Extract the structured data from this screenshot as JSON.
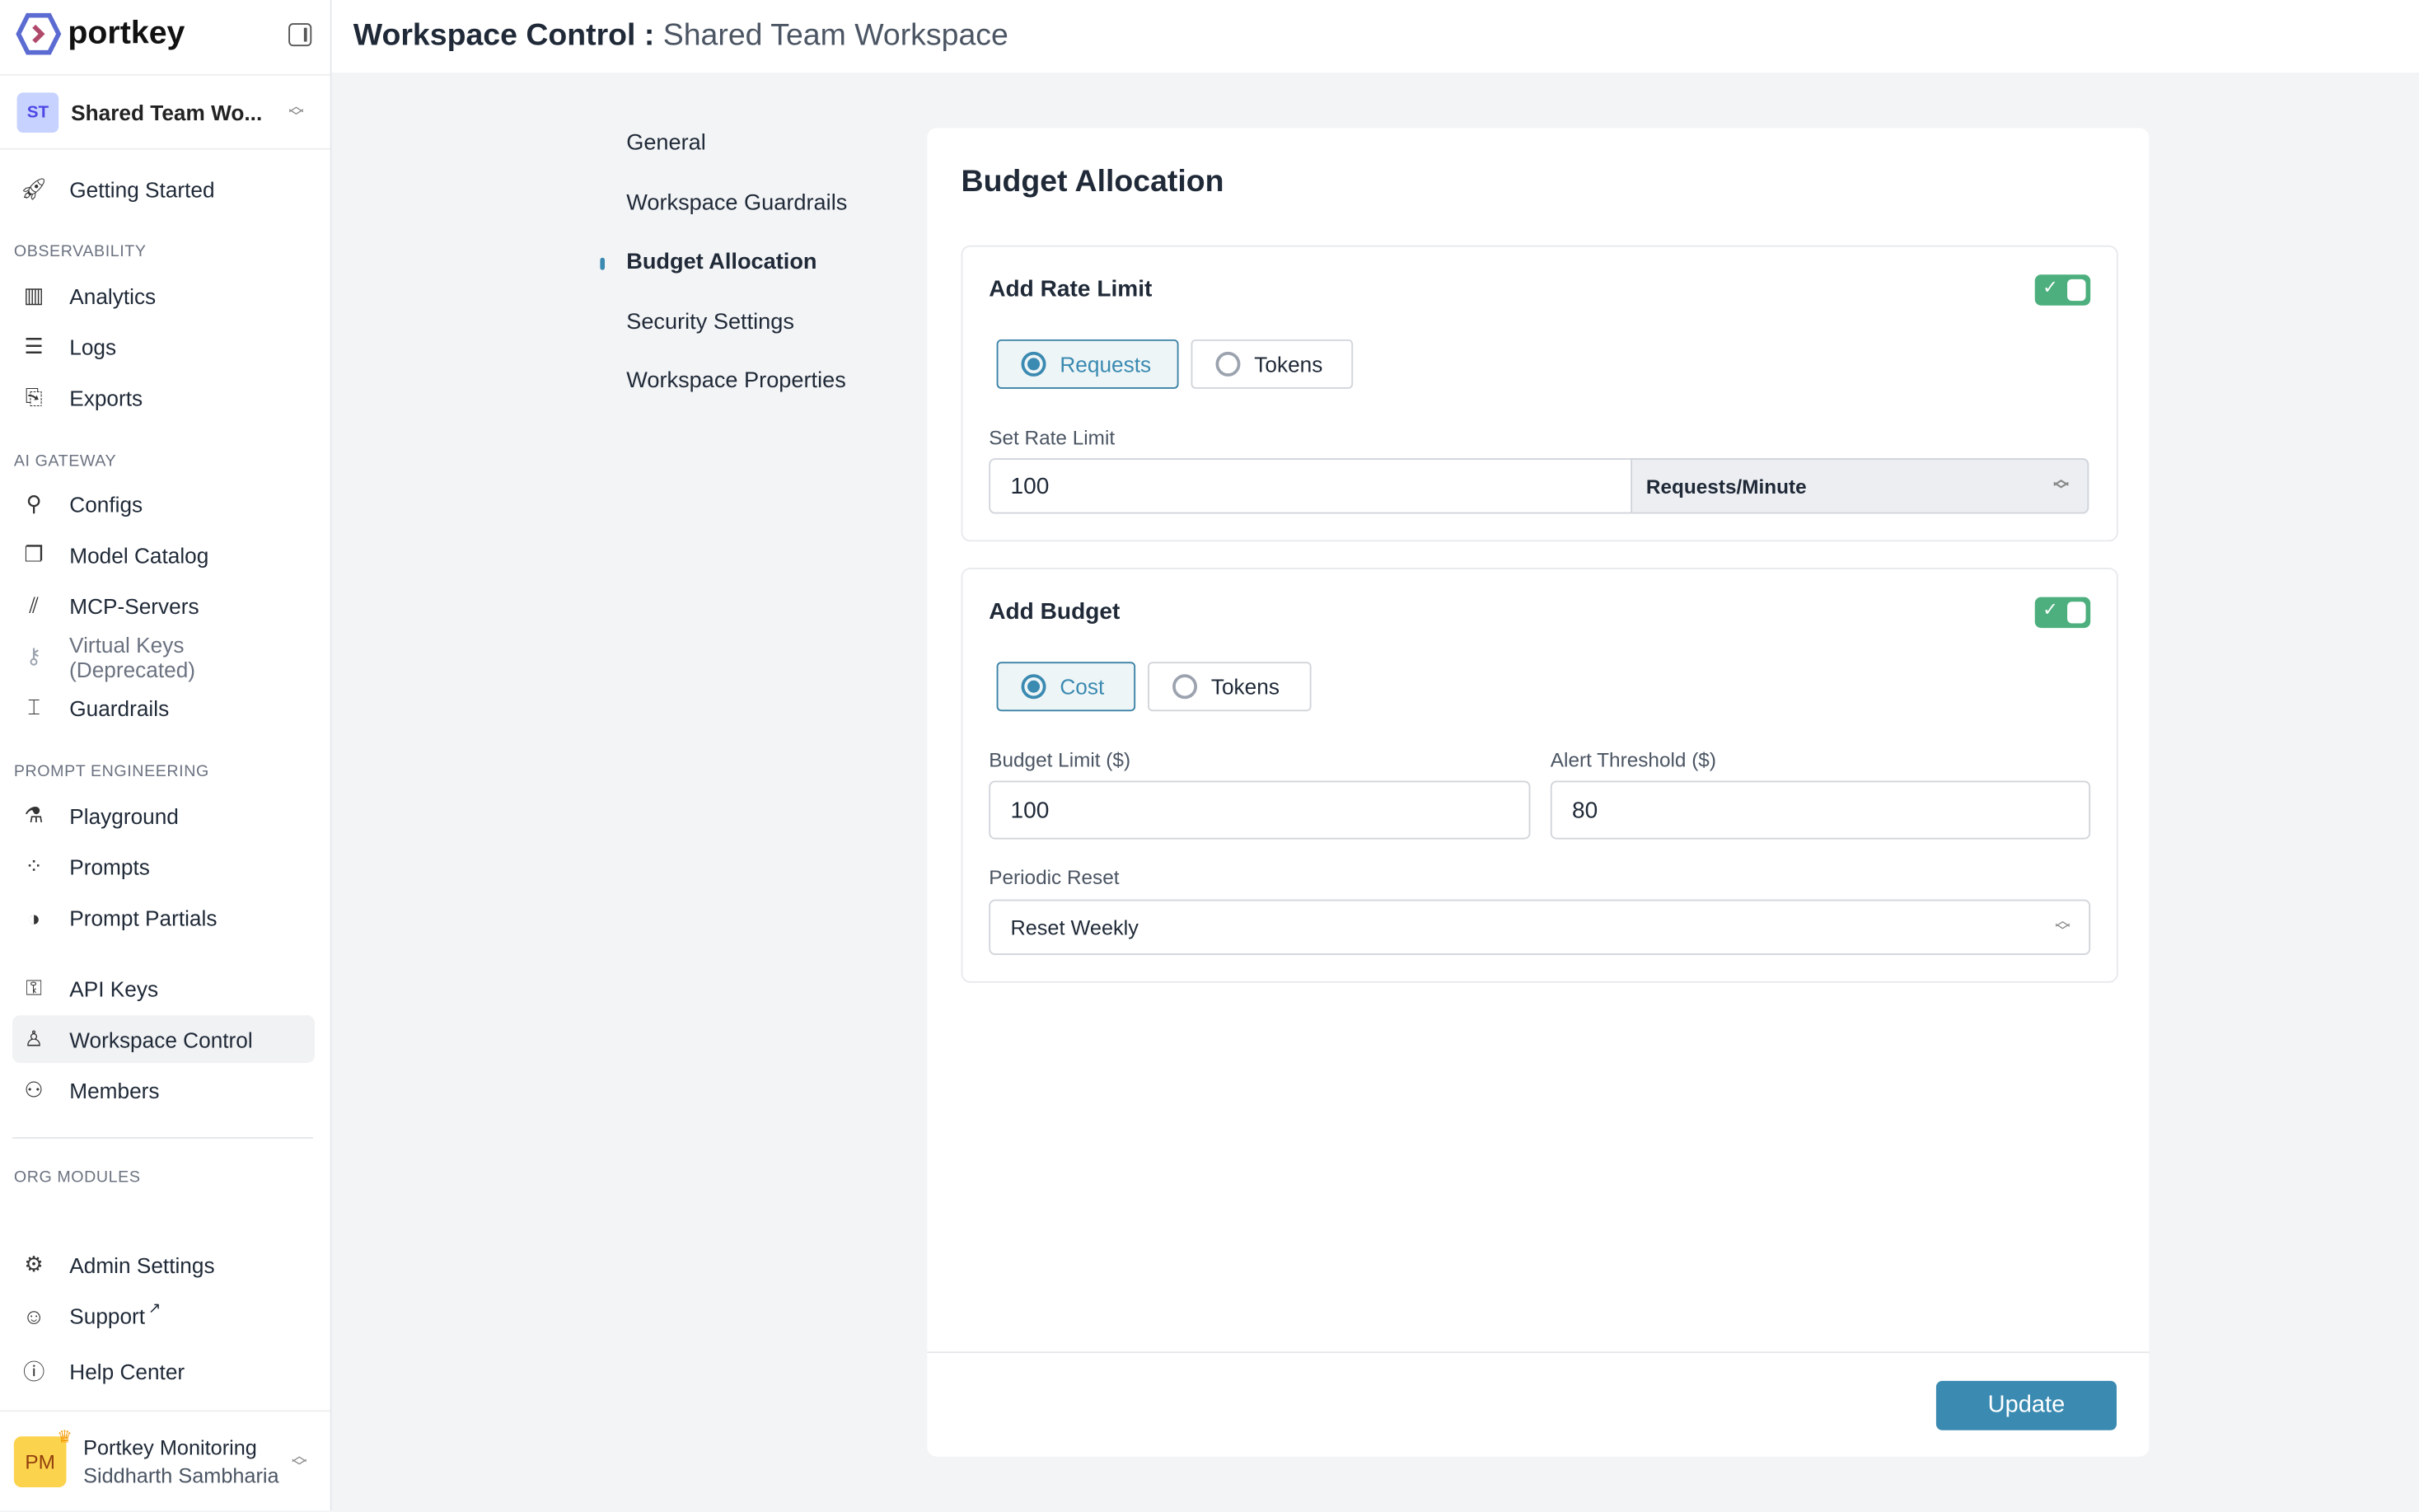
{
  "app": {
    "logo_text": "portkey"
  },
  "header": {
    "title_prefix": "Workspace Control :",
    "title_suffix": "Shared Team Workspace"
  },
  "workspace": {
    "initials": "ST",
    "name": "Shared Team Wo..."
  },
  "sidebar": {
    "getting_started": "Getting Started",
    "sections": {
      "observability": "OBSERVABILITY",
      "ai_gateway": "AI GATEWAY",
      "prompt_engineering": "PROMPT ENGINEERING",
      "org_modules": "ORG MODULES"
    },
    "items": {
      "analytics": "Analytics",
      "logs": "Logs",
      "exports": "Exports",
      "configs": "Configs",
      "model_catalog": "Model Catalog",
      "mcp_servers": "MCP-Servers",
      "virtual_keys": "Virtual Keys (Deprecated)",
      "guardrails": "Guardrails",
      "playground": "Playground",
      "prompts": "Prompts",
      "prompt_partials": "Prompt Partials",
      "api_keys": "API Keys",
      "workspace_control": "Workspace Control",
      "members": "Members",
      "admin_settings": "Admin Settings",
      "support": "Support",
      "help_center": "Help Center"
    },
    "active": "workspace_control"
  },
  "user": {
    "initials": "PM",
    "org": "Portkey Monitoring",
    "name": "Siddharth Sambharia"
  },
  "subnav": {
    "items": [
      "General",
      "Workspace Guardrails",
      "Budget Allocation",
      "Security Settings",
      "Workspace Properties"
    ],
    "active": "Budget Allocation"
  },
  "main": {
    "title": "Budget Allocation",
    "rate_limit": {
      "title": "Add Rate Limit",
      "enabled": true,
      "options": [
        "Requests",
        "Tokens"
      ],
      "selected": "Requests",
      "label": "Set Rate Limit",
      "value": "100",
      "unit": "Requests/Minute"
    },
    "budget": {
      "title": "Add Budget",
      "enabled": true,
      "options": [
        "Cost",
        "Tokens"
      ],
      "selected": "Cost",
      "limit_label": "Budget Limit ($)",
      "limit_value": "100",
      "alert_label": "Alert Threshold ($)",
      "alert_value": "80",
      "reset_label": "Periodic Reset",
      "reset_value": "Reset Weekly"
    },
    "update_label": "Update"
  },
  "colors": {
    "accent": "#3a8ab1",
    "toggle_on": "#4caf7d"
  }
}
